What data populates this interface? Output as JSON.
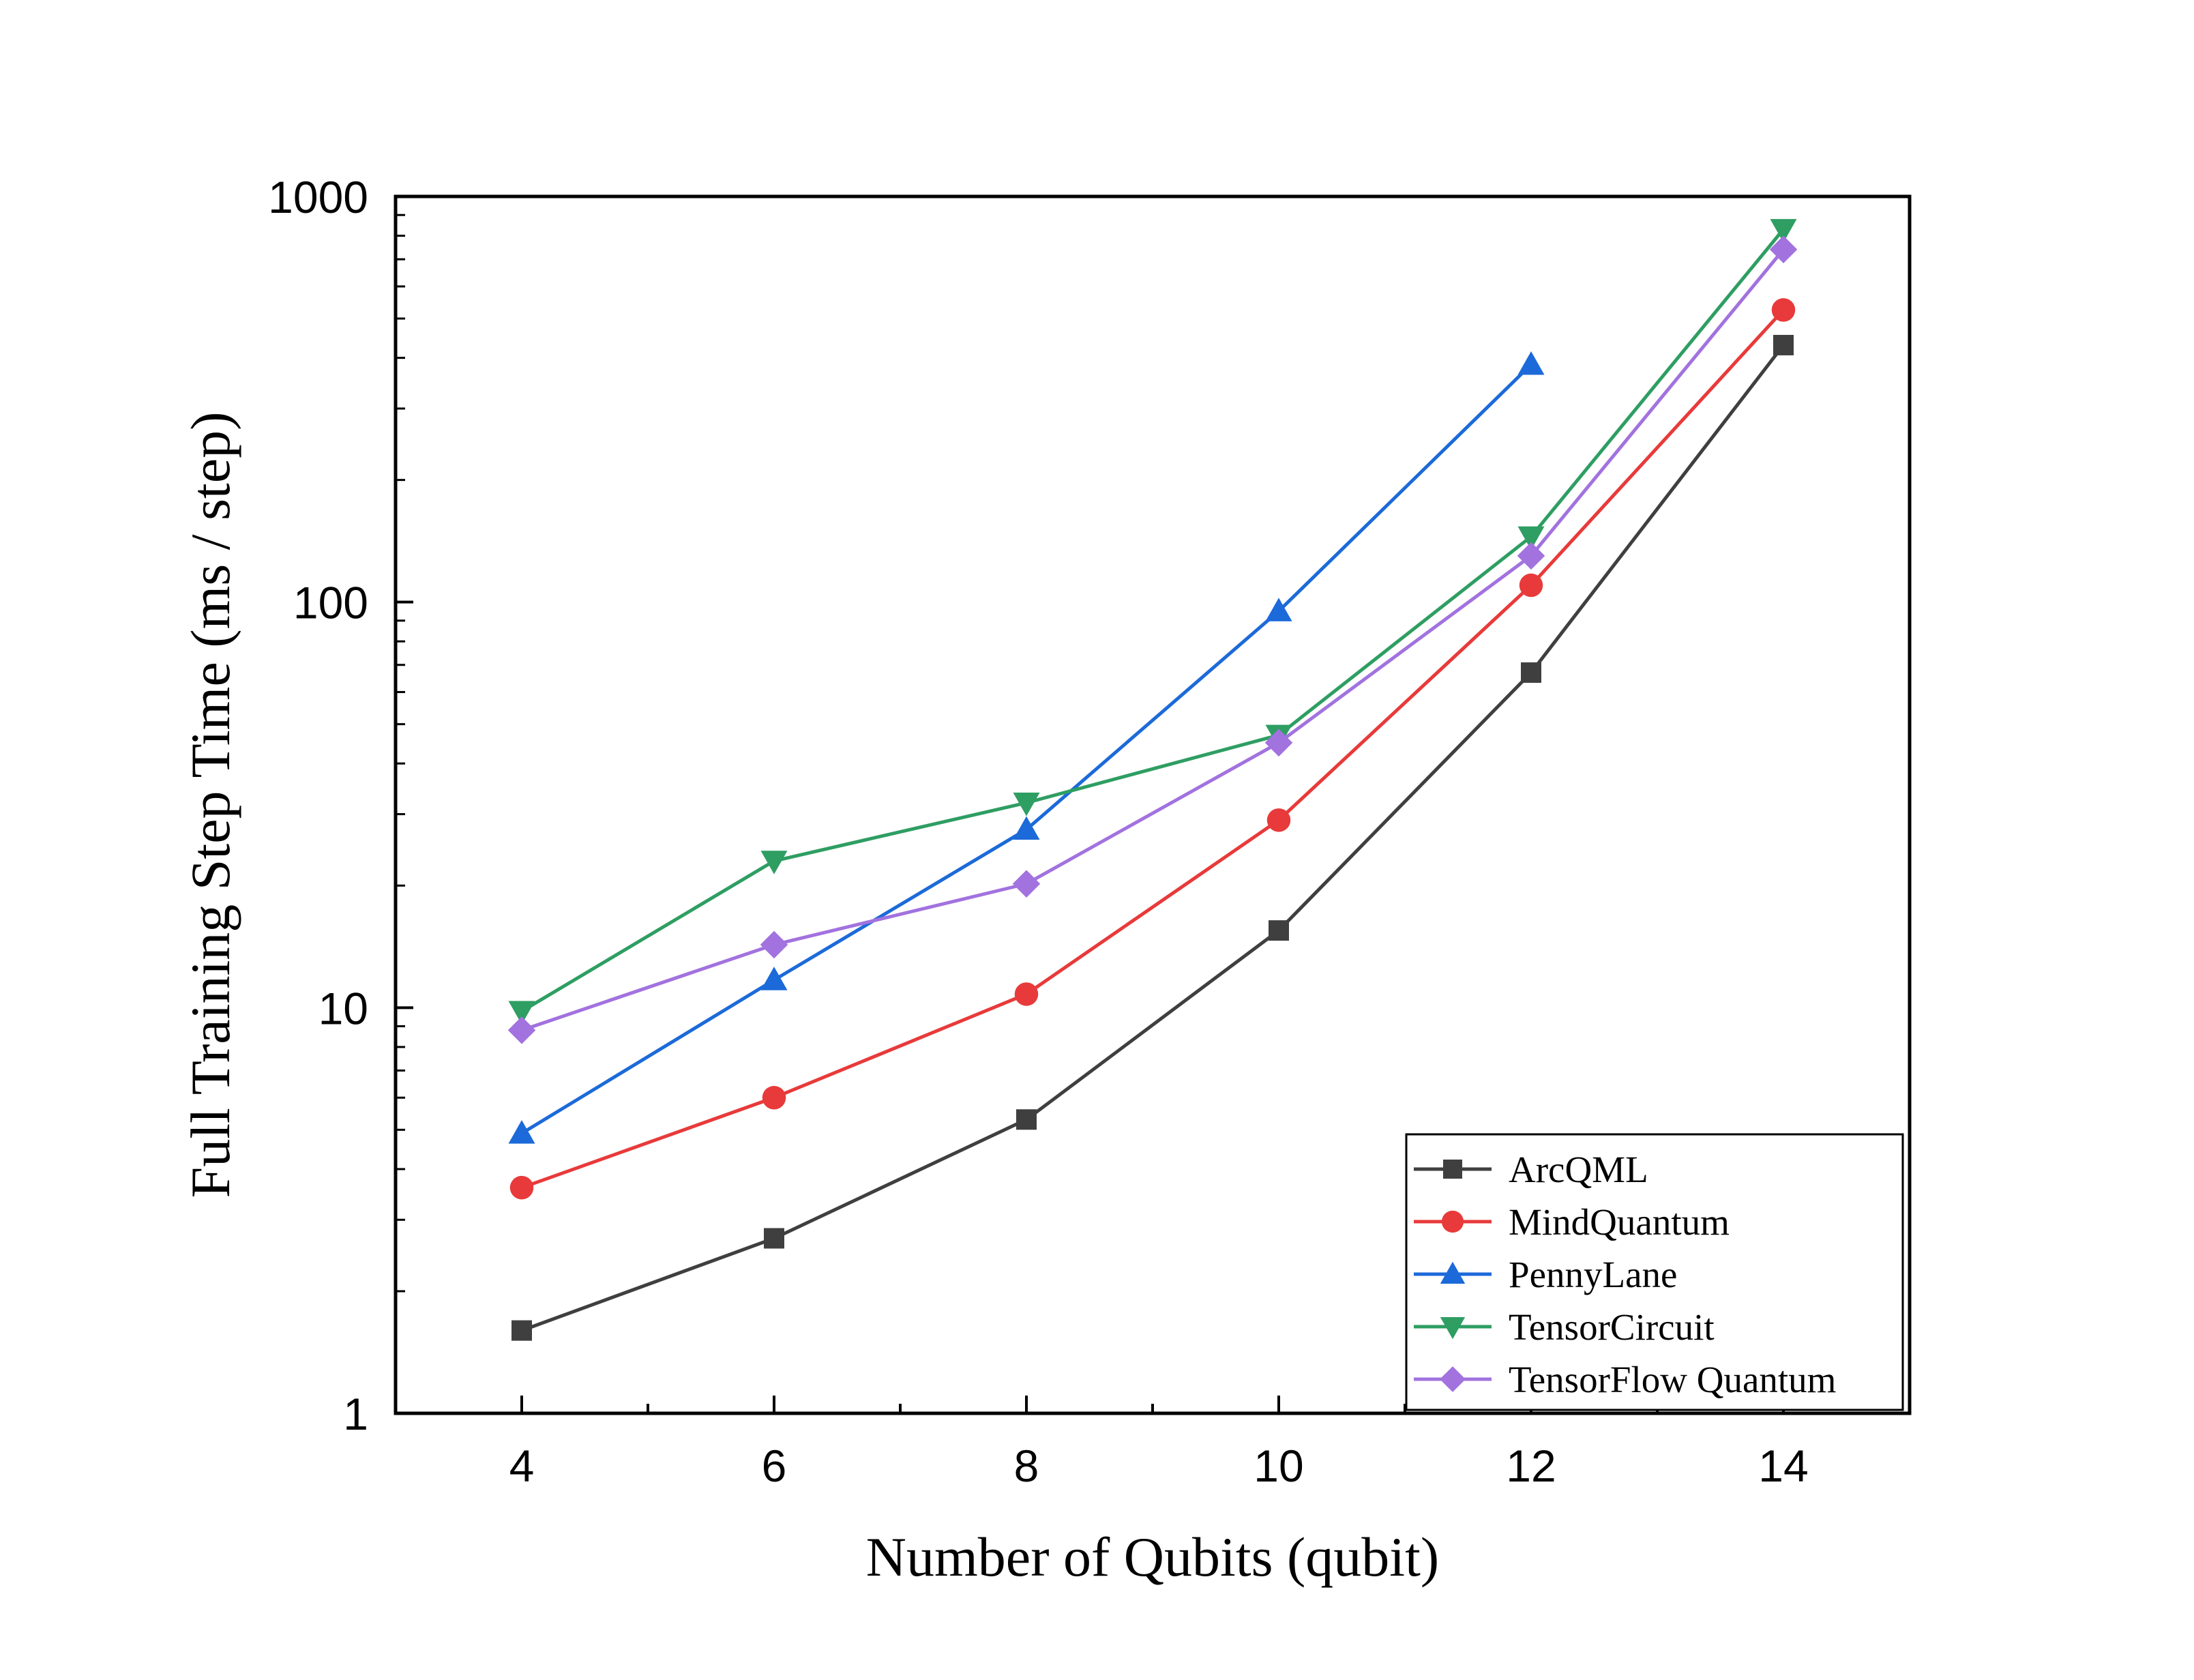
{
  "chart_data": {
    "type": "line",
    "title": "",
    "xlabel": "Number of Qubits (qubit)",
    "ylabel": "Full Training Step Time (ms / step)",
    "x": [
      4,
      6,
      8,
      10,
      12,
      14
    ],
    "xlim": [
      3,
      15
    ],
    "x_ticks": [
      "4",
      "6",
      "8",
      "10",
      "12",
      "14"
    ],
    "y_scale": "log",
    "ylim": [
      1,
      1000
    ],
    "y_ticks": [
      "1",
      "10",
      "100",
      "1000"
    ],
    "grid": false,
    "legend_position": "bottom-right",
    "series": [
      {
        "name": "ArcQML",
        "color": "#3f3f3f",
        "marker": "square",
        "values": [
          1.6,
          2.7,
          5.3,
          15.5,
          67,
          430
        ]
      },
      {
        "name": "MindQuantum",
        "color": "#e83a3a",
        "marker": "circle",
        "values": [
          3.6,
          6.0,
          10.8,
          29,
          110,
          525
        ]
      },
      {
        "name": "PennyLane",
        "color": "#1c6ad9",
        "marker": "triangle-up",
        "values": [
          4.9,
          11.7,
          27.5,
          95,
          385,
          null
        ]
      },
      {
        "name": "TensorCircuit",
        "color": "#2e9e62",
        "marker": "triangle-down",
        "values": [
          9.8,
          23,
          32,
          47,
          145,
          830
        ]
      },
      {
        "name": "TensorFlow Quantum",
        "color": "#a272df",
        "marker": "diamond",
        "values": [
          8.8,
          14.3,
          20.2,
          45,
          130,
          740
        ]
      }
    ]
  }
}
